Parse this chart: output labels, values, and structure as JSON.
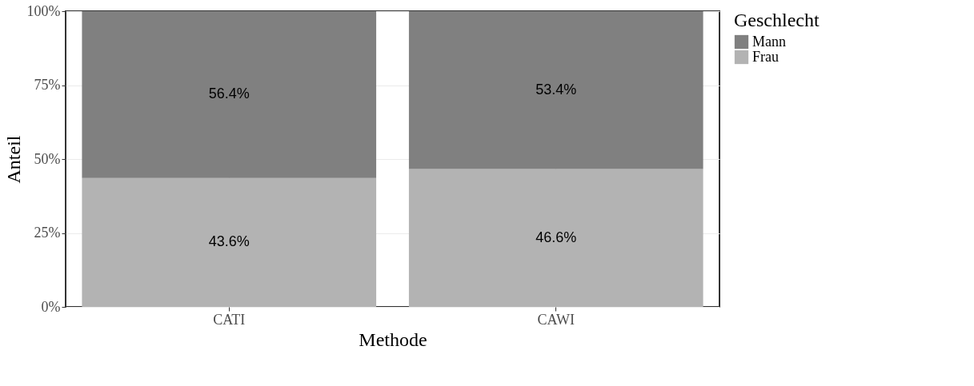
{
  "chart_data": {
    "type": "bar",
    "stacked": true,
    "xlabel": "Methode",
    "ylabel": "Anteil",
    "legend_title": "Geschlecht",
    "legend": "right",
    "categories": [
      "CATI",
      "CAWI"
    ],
    "series": [
      {
        "name": "Frau",
        "color": "#b3b3b3",
        "values": [
          43.6,
          46.6
        ],
        "value_labels": [
          "43.6%",
          "46.6%"
        ]
      },
      {
        "name": "Mann",
        "color": "#808080",
        "values": [
          56.4,
          53.4
        ],
        "value_labels": [
          "56.4%",
          "53.4%"
        ]
      }
    ],
    "ylim": [
      0,
      100
    ],
    "yticks": [
      {
        "value": 0,
        "label": "0%"
      },
      {
        "value": 25,
        "label": "25%"
      },
      {
        "value": 50,
        "label": "50%"
      },
      {
        "value": 75,
        "label": "75%"
      },
      {
        "value": 100,
        "label": "100%"
      }
    ],
    "grid": true
  }
}
